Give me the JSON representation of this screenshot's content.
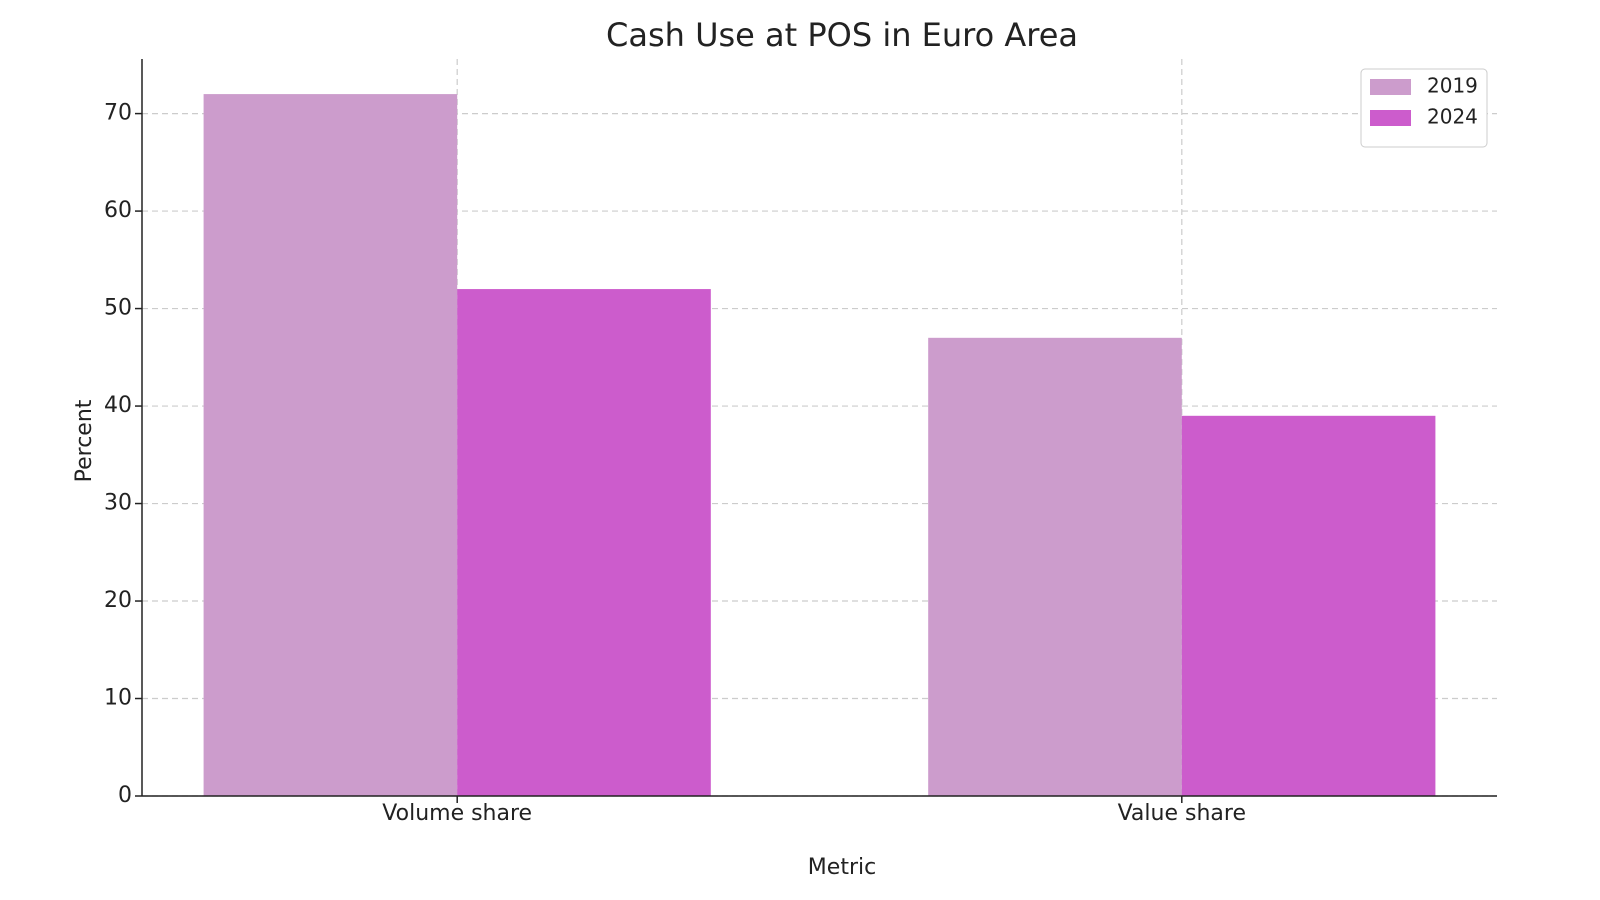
{
  "chart_data": {
    "type": "bar",
    "title": "Cash Use at POS in Euro Area",
    "x_label": "Metric",
    "y_label": "Percent",
    "categories": [
      "Volume share",
      "Value share"
    ],
    "series": [
      {
        "name": "2019",
        "color": "#cc9ccc",
        "values": [
          72,
          47
        ]
      },
      {
        "name": "2024",
        "color": "#cc5ccc",
        "values": [
          52,
          39
        ]
      }
    ],
    "ylim": [
      0,
      75.6
    ],
    "yticks": [
      0,
      10,
      20,
      30,
      40,
      50,
      60,
      70
    ],
    "grid": true,
    "legend": "upper right"
  }
}
